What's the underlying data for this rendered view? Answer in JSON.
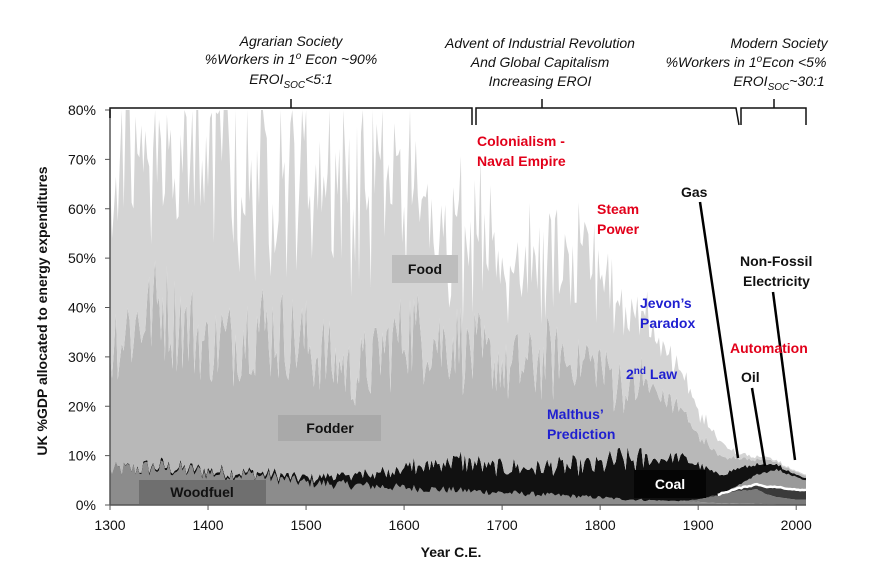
{
  "chart_data": {
    "type": "area",
    "stacked": true,
    "xlabel": "Year C.E.",
    "ylabel": "UK %GDP allocated to energy expenditures",
    "xlim": [
      1300,
      2010
    ],
    "ylim": [
      0,
      80
    ],
    "x_ticks": [
      "1300",
      "1400",
      "1500",
      "1600",
      "1700",
      "1800",
      "1900",
      "2000"
    ],
    "y_ticks": [
      "0%",
      "10%",
      "20%",
      "30%",
      "40%",
      "50%",
      "60%",
      "70%",
      "80%"
    ],
    "colors": {
      "woodfuel": "#8c8c8c",
      "coal": "#111111",
      "fodder": "#b8b8b8",
      "food": "#d4d4d4",
      "oil_gas_line": "#ffffff"
    },
    "x": [
      1300,
      1350,
      1400,
      1450,
      1500,
      1550,
      1600,
      1650,
      1700,
      1750,
      1800,
      1820,
      1850,
      1880,
      1900,
      1920,
      1940,
      1960,
      1970,
      1980,
      2000,
      2010
    ],
    "series": [
      {
        "name": "Woodfuel",
        "values": [
          7,
          7.5,
          6.5,
          6,
          4.5,
          4,
          3.5,
          3,
          2.5,
          2,
          1.5,
          1.2,
          1,
          0.8,
          0.6,
          0.4,
          0.3,
          0.2,
          0.2,
          0.1,
          0.1,
          0.1
        ]
      },
      {
        "name": "Coal",
        "values": [
          0,
          0.5,
          0.5,
          0.5,
          1,
          2,
          4,
          6,
          5,
          5.5,
          6.5,
          8,
          8,
          9,
          7,
          4,
          3.5,
          2,
          1.5,
          1,
          0.5,
          0.5
        ]
      },
      {
        "name": "Fodder",
        "values": [
          25,
          33,
          25,
          30,
          27,
          20,
          28,
          24,
          20,
          22,
          20,
          14,
          15,
          10,
          6,
          4,
          2,
          1,
          1,
          0.5,
          0.5,
          0.5
        ]
      },
      {
        "name": "Food",
        "values": [
          38,
          30,
          40,
          33,
          36,
          38,
          30,
          25,
          22,
          18,
          20,
          18,
          12,
          8,
          5,
          3,
          1,
          0.5,
          0.5,
          0.3,
          0.2,
          0.2
        ]
      },
      {
        "name": "Oil",
        "values": [
          0,
          0,
          0,
          0,
          0,
          0,
          0,
          0,
          0,
          0,
          0,
          0,
          0,
          0,
          0.5,
          1.5,
          2.5,
          3,
          2,
          1.5,
          1,
          1
        ]
      },
      {
        "name": "Gas",
        "values": [
          0,
          0,
          0,
          0,
          0,
          0,
          0,
          0,
          0,
          0,
          0,
          0,
          0,
          0,
          0,
          0.2,
          0.5,
          1,
          1.5,
          2,
          2,
          2
        ]
      },
      {
        "name": "Non-Fossil Electricity",
        "values": [
          0,
          0,
          0,
          0,
          0,
          0,
          0,
          0,
          0,
          0,
          0,
          0,
          0,
          0,
          0,
          0,
          0.5,
          2,
          3,
          3.5,
          2.5,
          2
        ]
      }
    ],
    "area_labels": {
      "woodfuel": "Woodfuel",
      "fodder": "Fodder",
      "food": "Food",
      "coal": "Coal"
    },
    "annotations": {
      "colonialism": [
        "Colonialism -",
        "Naval Empire"
      ],
      "steam_power": [
        "Steam",
        "Power"
      ],
      "gas": "Gas",
      "non_fossil": [
        "Non-Fossil",
        "Electricity"
      ],
      "jevons": [
        "Jevon’s",
        "Paradox"
      ],
      "automation": "Automation",
      "second_law": "2nd Law",
      "oil": "Oil",
      "malthus": [
        "Malthus’",
        "Prediction"
      ]
    },
    "eras": [
      {
        "line1": "Agrarian Society",
        "line2": "%Workers in 1o Econ ~90%",
        "line3": "EROISOC<5:1",
        "range": [
          1300,
          1670
        ]
      },
      {
        "line1": "Advent of Industrial Revolution",
        "line2": "And Global Capitalism",
        "line3": "Increasing EROI",
        "range": [
          1670,
          1940
        ]
      },
      {
        "line1": "Modern Society",
        "line2": "%Workers in 1oEcon <5%",
        "line3": "EROISOC~30:1",
        "range": [
          1940,
          2010
        ]
      }
    ]
  }
}
